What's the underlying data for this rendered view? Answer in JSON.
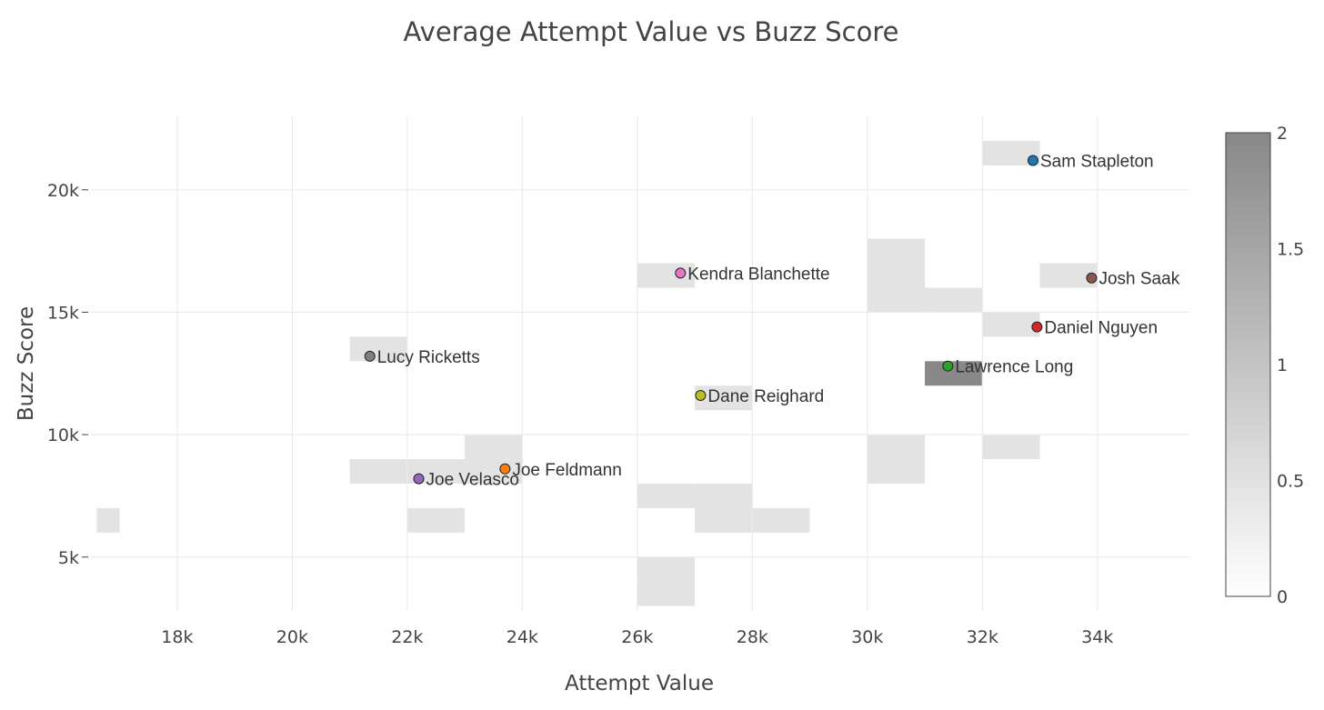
{
  "chart_data": {
    "type": "scatter",
    "title": "Average Attempt Value vs Buzz Score",
    "xlabel": "Attempt Value",
    "ylabel": "Buzz Score",
    "xlim": [
      16500,
      35600
    ],
    "ylim": [
      2800,
      23000
    ],
    "x_ticks": [
      {
        "value": 18000,
        "label": "18k"
      },
      {
        "value": 20000,
        "label": "20k"
      },
      {
        "value": 22000,
        "label": "22k"
      },
      {
        "value": 24000,
        "label": "24k"
      },
      {
        "value": 26000,
        "label": "26k"
      },
      {
        "value": 28000,
        "label": "28k"
      },
      {
        "value": 30000,
        "label": "30k"
      },
      {
        "value": 32000,
        "label": "32k"
      },
      {
        "value": 34000,
        "label": "34k"
      }
    ],
    "y_ticks": [
      {
        "value": 5000,
        "label": "5k"
      },
      {
        "value": 10000,
        "label": "10k"
      },
      {
        "value": 15000,
        "label": "15k"
      },
      {
        "value": 20000,
        "label": "20k"
      }
    ],
    "heatmap": {
      "bin_width": 1000,
      "bin_height": 1000,
      "color_min": "#ffffff",
      "color_max": "#888888",
      "zmin": 0,
      "zmax": 2,
      "colorbar_ticks": [
        {
          "value": 2,
          "label": "2"
        },
        {
          "value": 1.5,
          "label": "1.5"
        },
        {
          "value": 1,
          "label": "1"
        },
        {
          "value": 0.5,
          "label": "0.5"
        },
        {
          "value": 0,
          "label": "0"
        }
      ],
      "bins": [
        {
          "x0": 32000,
          "y0": 21000,
          "count": 1
        },
        {
          "x0": 30000,
          "y0": 17000,
          "count": 1
        },
        {
          "x0": 30000,
          "y0": 16000,
          "count": 1
        },
        {
          "x0": 30000,
          "y0": 15000,
          "count": 1
        },
        {
          "x0": 31000,
          "y0": 15000,
          "count": 1
        },
        {
          "x0": 26000,
          "y0": 16000,
          "count": 1
        },
        {
          "x0": 33000,
          "y0": 16000,
          "count": 1
        },
        {
          "x0": 32000,
          "y0": 14000,
          "count": 1
        },
        {
          "x0": 21000,
          "y0": 13000,
          "count": 1
        },
        {
          "x0": 31000,
          "y0": 12000,
          "count": 2
        },
        {
          "x0": 27000,
          "y0": 11000,
          "count": 1
        },
        {
          "x0": 23000,
          "y0": 9000,
          "count": 1
        },
        {
          "x0": 30000,
          "y0": 9000,
          "count": 1
        },
        {
          "x0": 32000,
          "y0": 9000,
          "count": 1
        },
        {
          "x0": 21000,
          "y0": 8000,
          "count": 1
        },
        {
          "x0": 22000,
          "y0": 8000,
          "count": 1
        },
        {
          "x0": 23000,
          "y0": 8000,
          "count": 1
        },
        {
          "x0": 30000,
          "y0": 8000,
          "count": 1
        },
        {
          "x0": 26000,
          "y0": 7000,
          "count": 1
        },
        {
          "x0": 27000,
          "y0": 7000,
          "count": 1
        },
        {
          "x0": 16600,
          "y0": 6000,
          "count": 1,
          "x1": 17000
        },
        {
          "x0": 22000,
          "y0": 6000,
          "count": 1
        },
        {
          "x0": 27000,
          "y0": 6000,
          "count": 1
        },
        {
          "x0": 28000,
          "y0": 6000,
          "count": 1
        },
        {
          "x0": 26000,
          "y0": 4000,
          "count": 1
        },
        {
          "x0": 26000,
          "y0": 3000,
          "count": 1
        }
      ]
    },
    "series": [
      {
        "name": "Sam Stapleton",
        "x": 32880,
        "y": 21200,
        "color": "#1f77b4"
      },
      {
        "name": "Kendra Blanchette",
        "x": 26750,
        "y": 16600,
        "color": "#e377c2"
      },
      {
        "name": "Josh Saak",
        "x": 33900,
        "y": 16400,
        "color": "#8c564b"
      },
      {
        "name": "Daniel Nguyen",
        "x": 32950,
        "y": 14400,
        "color": "#d62728"
      },
      {
        "name": "Lucy Ricketts",
        "x": 21350,
        "y": 13200,
        "color": "#7f7f7f"
      },
      {
        "name": "Lawrence Long",
        "x": 31400,
        "y": 12800,
        "color": "#2ca02c"
      },
      {
        "name": "Dane Reighard",
        "x": 27100,
        "y": 11600,
        "color": "#bcbd22"
      },
      {
        "name": "Joe Feldmann",
        "x": 23700,
        "y": 8600,
        "color": "#ff7f0e"
      },
      {
        "name": "Joe Velasco",
        "x": 22200,
        "y": 8200,
        "color": "#9467bd"
      }
    ]
  }
}
